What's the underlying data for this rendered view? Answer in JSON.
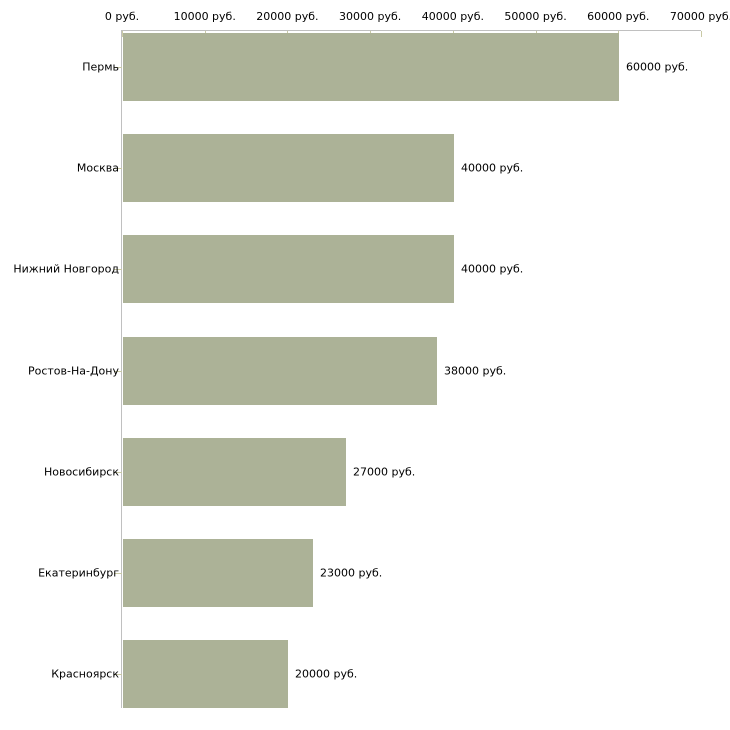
{
  "chart_data": {
    "type": "bar",
    "orientation": "horizontal",
    "title": "",
    "xlabel": "",
    "ylabel": "",
    "categories": [
      "Пермь",
      "Москва",
      "Нижний Новгород",
      "Ростов-На-Дону",
      "Новосибирск",
      "Екатеринбург",
      "Красноярск"
    ],
    "values": [
      60000,
      40000,
      40000,
      38000,
      27000,
      23000,
      20000
    ],
    "value_labels": [
      "60000 руб.",
      "40000 руб.",
      "40000 руб.",
      "38000 руб.",
      "27000 руб.",
      "23000 руб.",
      "20000 руб."
    ],
    "x_tick_values": [
      0,
      10000,
      20000,
      30000,
      40000,
      50000,
      60000,
      70000
    ],
    "x_tick_labels": [
      "0 руб.",
      "10000 руб.",
      "20000 руб.",
      "30000 руб.",
      "40000 руб.",
      "50000 руб.",
      "60000 руб.",
      "70000 руб."
    ],
    "xlim": [
      0,
      70000
    ],
    "grid": false,
    "legend": false,
    "axis_position": "top",
    "colors": {
      "bar_fill": "#acb297",
      "axis_line": "#c0c0c0",
      "tick_mark": "#c9c9a5",
      "text": "#000000",
      "background": "#ffffff"
    }
  }
}
